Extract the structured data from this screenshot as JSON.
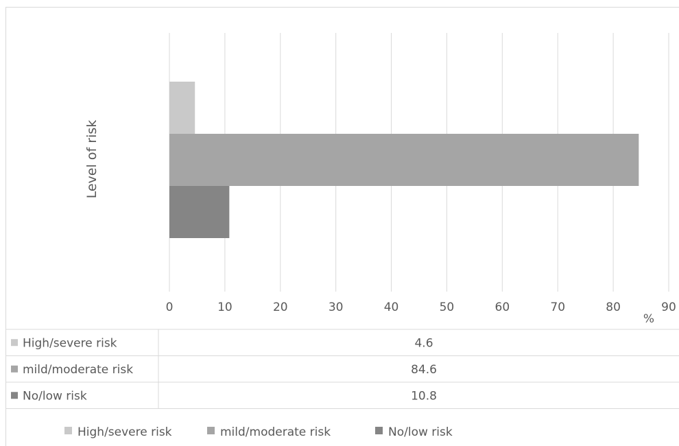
{
  "chart_data": {
    "type": "bar",
    "orientation": "horizontal",
    "title": "",
    "ylabel": "Level of risk",
    "xlabel": "%",
    "xlim": [
      0,
      90
    ],
    "xticks": [
      0,
      10,
      20,
      30,
      40,
      50,
      60,
      70,
      80,
      90
    ],
    "grid": true,
    "legend": "bottom",
    "data_table": true,
    "series": [
      {
        "name": "High/severe risk",
        "values": [
          4.6
        ],
        "color": "#c9c9c9",
        "display": "4.6"
      },
      {
        "name": "mild/moderate risk",
        "values": [
          84.6
        ],
        "color": "#a5a5a5",
        "display": "84.6"
      },
      {
        "name": "No/low risk",
        "values": [
          10.8
        ],
        "color": "#858585",
        "display": "10.8"
      }
    ]
  }
}
